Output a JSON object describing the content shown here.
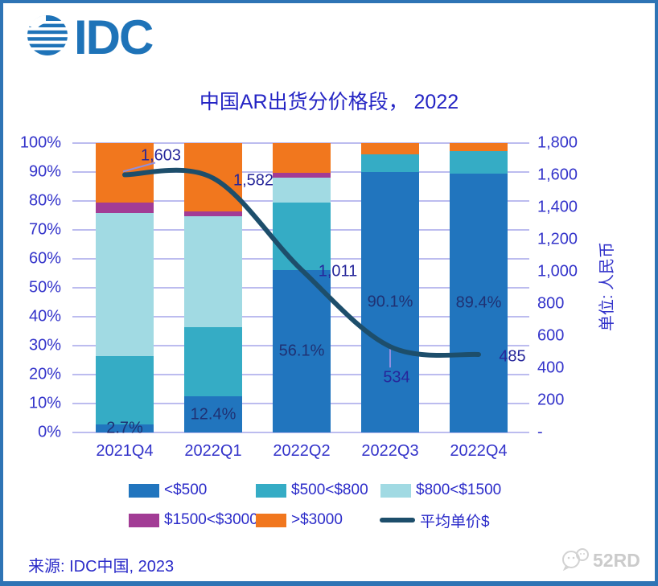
{
  "frame": {
    "border_color": "#2E74B5",
    "background": "#FFFFFF"
  },
  "logo": {
    "text": "IDC",
    "color": "#1E73B8"
  },
  "title": "中国AR出货分价格段， 2022",
  "source": "来源: IDC中国, 2023",
  "watermark": {
    "text": "52RD"
  },
  "chart_data": {
    "type": "bar",
    "subtype": "100-percent-stacked-bar-with-line",
    "title": "中国AR出货分价格段， 2022",
    "categories": [
      "2021Q4",
      "2022Q1",
      "2022Q2",
      "2022Q3",
      "2022Q4"
    ],
    "series": [
      {
        "name": "<$500",
        "color": "#2175BE",
        "values": [
          2.7,
          12.4,
          56.1,
          90.1,
          89.4
        ]
      },
      {
        "name": "$500<$800",
        "color": "#35ACC5",
        "values": [
          23.8,
          24.1,
          23.4,
          6.1,
          7.8
        ]
      },
      {
        "name": "$800<$1500",
        "color": "#A1DAE3",
        "values": [
          49.4,
          38.2,
          8.6,
          0,
          0
        ]
      },
      {
        "name": "$1500<$3000",
        "color": "#A23C95",
        "values": [
          3.6,
          1.6,
          1.6,
          0,
          0
        ]
      },
      {
        "name": ">$3000",
        "color": "#F1771E",
        "values": [
          20.5,
          23.7,
          10.3,
          3.8,
          2.8
        ]
      }
    ],
    "bar_value_labels": [
      "2.7%",
      "12.4%",
      "56.1%",
      "90.1%",
      "89.4%"
    ],
    "line_series": {
      "name": "平均单价$",
      "color": "#1D4E6B",
      "values": [
        1603,
        1582,
        1011,
        534,
        485
      ],
      "labels": [
        "1,603",
        "1,582",
        "1,011",
        "534",
        "485"
      ]
    },
    "left_axis": {
      "min": 0,
      "max": 100,
      "step": 10,
      "ticks": [
        "0%",
        "10%",
        "20%",
        "30%",
        "40%",
        "50%",
        "60%",
        "70%",
        "80%",
        "90%",
        "100%"
      ]
    },
    "right_axis": {
      "min": 0,
      "max": 1800,
      "step": 200,
      "ticks": [
        "-",
        "200",
        "400",
        "600",
        "800",
        "1,000",
        "1,200",
        "1,400",
        "1,600",
        "1,800"
      ],
      "title": "单位: 人民币"
    },
    "grid": true,
    "legend_position": "bottom"
  }
}
